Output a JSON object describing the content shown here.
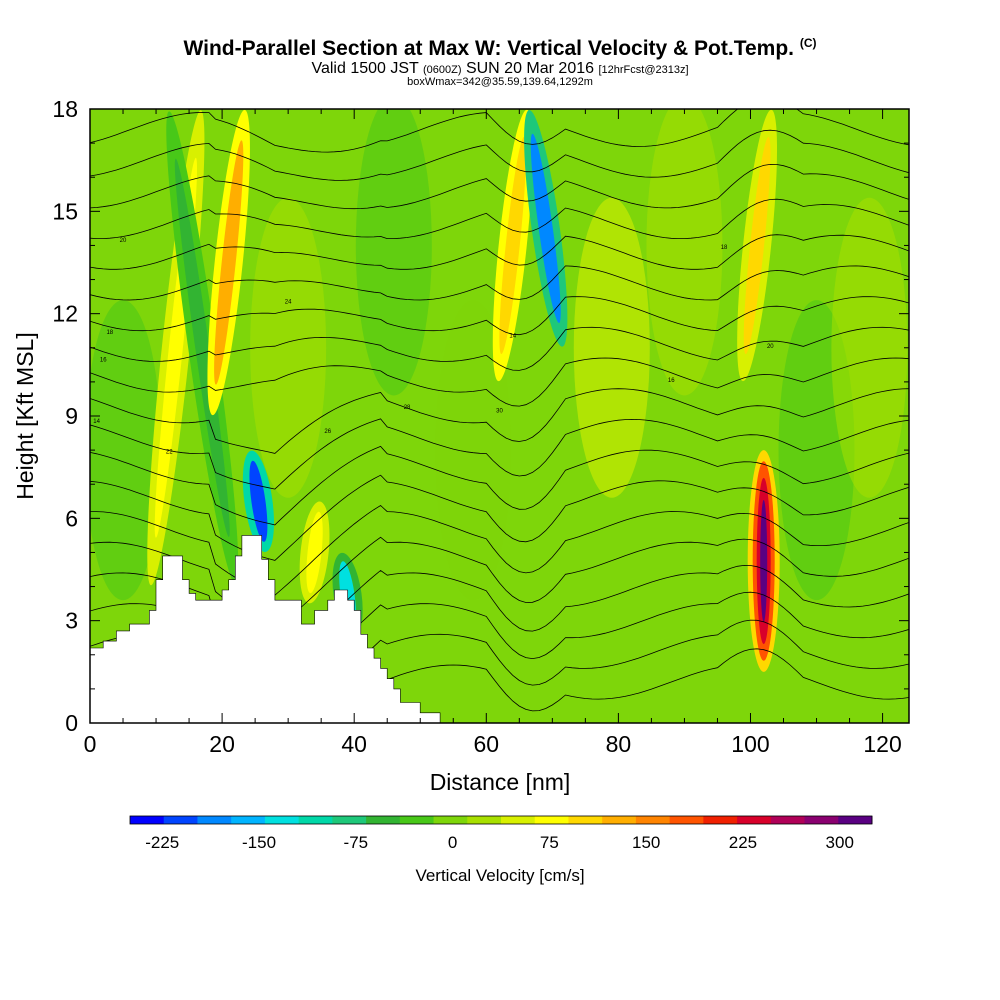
{
  "header": {
    "title": "Wind-Parallel Section at Max W: Vertical Velocity & Pot.Temp.",
    "copyright": "(C)",
    "valid_prefix": "Valid 1500 JST",
    "valid_utc": "(0600Z)",
    "valid_date": "SUN 20 Mar 2016",
    "forecast": "[12hrFcst@2313z]",
    "box_info": "boxWmax=342@35.59,139.64,1292m"
  },
  "chart_data": {
    "type": "heatmap",
    "xlabel": "Distance [nm]",
    "ylabel": "Height [Kft MSL]",
    "xlim": [
      0,
      124
    ],
    "ylim": [
      0,
      18
    ],
    "x_ticks": [
      0,
      20,
      40,
      60,
      80,
      100,
      120
    ],
    "y_ticks": [
      0,
      3,
      6,
      9,
      12,
      15,
      18
    ],
    "colorbar": {
      "label": "Vertical Velocity [cm/s]",
      "tick_labels": [
        "-225",
        "-150",
        "-75",
        "0",
        "75",
        "150",
        "225",
        "300"
      ],
      "tick_values": [
        -225,
        -150,
        -75,
        0,
        75,
        150,
        225,
        300
      ],
      "range": [
        -250,
        325
      ],
      "colors": [
        "#0000ff",
        "#0044ff",
        "#0088ff",
        "#00b4ff",
        "#00e0e0",
        "#00d8a8",
        "#1ec87a",
        "#32b432",
        "#48c818",
        "#7ed60a",
        "#a8e000",
        "#d8f000",
        "#ffff00",
        "#ffd800",
        "#ffae00",
        "#ff8400",
        "#ff5400",
        "#f02000",
        "#d8002a",
        "#b00058",
        "#8a0070",
        "#5a0082"
      ]
    },
    "terrain_top_kft": [
      [
        0,
        2.2
      ],
      [
        2,
        2.4
      ],
      [
        4,
        2.7
      ],
      [
        6,
        2.9
      ],
      [
        9,
        3.3
      ],
      [
        10,
        4.2
      ],
      [
        11,
        4.9
      ],
      [
        14,
        4.2
      ],
      [
        15,
        3.8
      ],
      [
        16,
        3.6
      ],
      [
        20,
        3.9
      ],
      [
        21,
        4.2
      ],
      [
        22,
        4.9
      ],
      [
        23,
        5.5
      ],
      [
        26,
        4.8
      ],
      [
        27,
        4.2
      ],
      [
        28,
        3.6
      ],
      [
        30,
        3.6
      ],
      [
        32,
        2.9
      ],
      [
        34,
        3.3
      ],
      [
        36,
        3.6
      ],
      [
        37,
        3.9
      ],
      [
        39,
        3.6
      ],
      [
        40,
        3.3
      ],
      [
        41,
        2.6
      ],
      [
        42,
        2.2
      ],
      [
        43,
        1.9
      ],
      [
        44,
        1.6
      ],
      [
        45,
        1.3
      ],
      [
        46,
        1.0
      ],
      [
        47,
        0.6
      ],
      [
        48,
        0.6
      ],
      [
        50,
        0.3
      ],
      [
        52,
        0.3
      ],
      [
        53,
        0.0
      ],
      [
        124,
        0.0
      ]
    ],
    "isentrope_labels": [
      "14",
      "16",
      "18",
      "20",
      "22",
      "24",
      "26",
      "28",
      "30"
    ],
    "velocity_features": [
      {
        "x": 13,
        "z_range": [
          4,
          18
        ],
        "w": 80
      },
      {
        "x": 17,
        "z_range": [
          4,
          18
        ],
        "w": -60
      },
      {
        "x": 21,
        "z_range": [
          9,
          18
        ],
        "w": 120
      },
      {
        "x": 25.5,
        "z_range": [
          5,
          8
        ],
        "w": -220
      },
      {
        "x": 34,
        "z_range": [
          3.5,
          6.5
        ],
        "w": 80
      },
      {
        "x": 39,
        "z_range": [
          2.5,
          5
        ],
        "w": -120
      },
      {
        "x": 64,
        "z_range": [
          10,
          18
        ],
        "w": 110
      },
      {
        "x": 69,
        "z_range": [
          11,
          18
        ],
        "w": -180
      },
      {
        "x": 102,
        "z_range": [
          1.5,
          8
        ],
        "w": 342
      },
      {
        "x": 101,
        "z_range": [
          10,
          18
        ],
        "w": 90
      }
    ]
  }
}
